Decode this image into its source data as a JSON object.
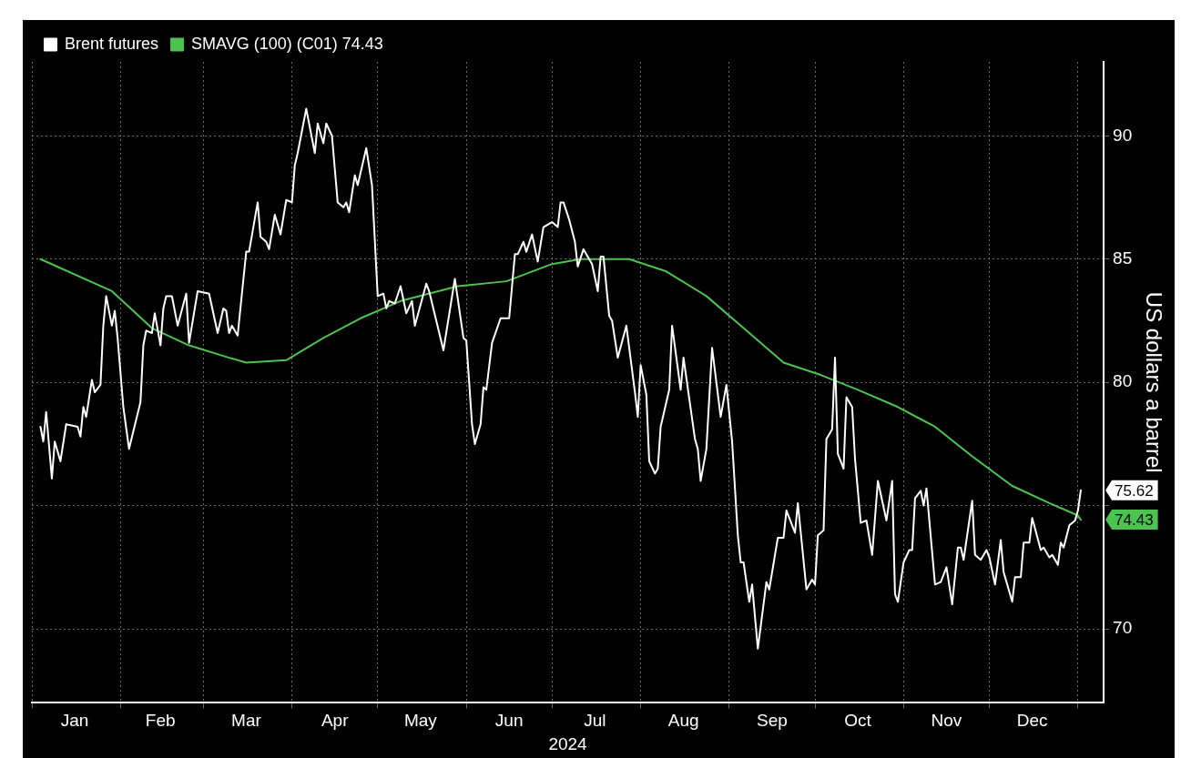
{
  "chart_data": {
    "type": "line",
    "xlabel": "2024",
    "ylabel": "US dollars a barrel",
    "xlim": [
      "2024-01-01",
      "2025-01-10"
    ],
    "xticks": [
      {
        "value": "2024-01-01",
        "label": null
      },
      {
        "value": "2024-01-16",
        "label": "Jan"
      },
      {
        "value": "2024-02-01",
        "label": null
      },
      {
        "value": "2024-02-15",
        "label": "Feb"
      },
      {
        "value": "2024-03-01",
        "label": null
      },
      {
        "value": "2024-03-16",
        "label": "Mar"
      },
      {
        "value": "2024-04-01",
        "label": null
      },
      {
        "value": "2024-04-16",
        "label": "Apr"
      },
      {
        "value": "2024-05-01",
        "label": null
      },
      {
        "value": "2024-05-16",
        "label": "May"
      },
      {
        "value": "2024-06-01",
        "label": null
      },
      {
        "value": "2024-06-16",
        "label": "Jun"
      },
      {
        "value": "2024-07-01",
        "label": null
      },
      {
        "value": "2024-07-16",
        "label": "Jul"
      },
      {
        "value": "2024-08-01",
        "label": null
      },
      {
        "value": "2024-08-16",
        "label": "Aug"
      },
      {
        "value": "2024-09-01",
        "label": null
      },
      {
        "value": "2024-09-16",
        "label": "Sep"
      },
      {
        "value": "2024-10-01",
        "label": null
      },
      {
        "value": "2024-10-16",
        "label": "Oct"
      },
      {
        "value": "2024-11-01",
        "label": null
      },
      {
        "value": "2024-11-16",
        "label": "Nov"
      },
      {
        "value": "2024-12-01",
        "label": null
      },
      {
        "value": "2024-12-16",
        "label": "Dec"
      },
      {
        "value": "2025-01-01",
        "label": null
      }
    ],
    "ylim": [
      67,
      93
    ],
    "yticks": [
      70,
      {
        "value": 75,
        "label": null
      },
      80,
      85,
      90
    ],
    "grid": true,
    "legend": "top left",
    "marker": "none",
    "line_style": "solid",
    "annotations": [
      {
        "text": "75.62",
        "x": "2025-01-02",
        "y": 75.62
      },
      {
        "text": "74.43",
        "x": "2025-01-02",
        "y": 74.43
      }
    ],
    "series": [
      {
        "name": "Brent futures",
        "color": "#ffffff",
        "x": [
          "2024-01-04",
          "2024-01-05",
          "2024-01-06",
          "2024-01-08",
          "2024-01-09",
          "2024-01-11",
          "2024-01-13",
          "2024-01-17",
          "2024-01-18",
          "2024-01-19",
          "2024-01-20",
          "2024-01-22",
          "2024-01-23",
          "2024-01-25",
          "2024-01-26",
          "2024-01-27",
          "2024-01-29",
          "2024-01-30",
          "2024-01-31",
          "2024-02-02",
          "2024-02-04",
          "2024-02-08",
          "2024-02-09",
          "2024-02-10",
          "2024-02-12",
          "2024-02-13",
          "2024-02-15",
          "2024-02-16",
          "2024-02-17",
          "2024-02-19",
          "2024-02-21",
          "2024-02-24",
          "2024-02-25",
          "2024-02-28",
          "2024-03-03",
          "2024-03-06",
          "2024-03-08",
          "2024-03-09",
          "2024-03-10",
          "2024-03-11",
          "2024-03-13",
          "2024-03-16",
          "2024-03-17",
          "2024-03-20",
          "2024-03-21",
          "2024-03-23",
          "2024-03-24",
          "2024-03-26",
          "2024-03-28",
          "2024-03-30",
          "2024-04-01",
          "2024-04-02",
          "2024-04-03",
          "2024-04-06",
          "2024-04-09",
          "2024-04-10",
          "2024-04-12",
          "2024-04-13",
          "2024-04-15",
          "2024-04-17",
          "2024-04-19",
          "2024-04-20",
          "2024-04-21",
          "2024-04-23",
          "2024-04-24",
          "2024-04-27",
          "2024-04-29",
          "2024-05-01",
          "2024-05-03",
          "2024-05-04",
          "2024-05-05",
          "2024-05-07",
          "2024-05-09",
          "2024-05-11",
          "2024-05-13",
          "2024-05-14",
          "2024-05-18",
          "2024-05-19",
          "2024-05-24",
          "2024-05-28",
          "2024-05-31",
          "2024-06-01",
          "2024-06-03",
          "2024-06-04",
          "2024-06-06",
          "2024-06-07",
          "2024-06-08",
          "2024-06-10",
          "2024-06-13",
          "2024-06-16",
          "2024-06-18",
          "2024-06-19",
          "2024-06-21",
          "2024-06-22",
          "2024-06-24",
          "2024-06-26",
          "2024-06-28",
          "2024-07-01",
          "2024-07-03",
          "2024-07-04",
          "2024-07-05",
          "2024-07-07",
          "2024-07-09",
          "2024-07-10",
          "2024-07-12",
          "2024-07-15",
          "2024-07-17",
          "2024-07-18",
          "2024-07-19",
          "2024-07-21",
          "2024-07-22",
          "2024-07-24",
          "2024-07-27",
          "2024-07-30",
          "2024-07-31",
          "2024-08-01",
          "2024-08-03",
          "2024-08-04",
          "2024-08-06",
          "2024-08-07",
          "2024-08-08",
          "2024-08-11",
          "2024-08-12",
          "2024-08-15",
          "2024-08-16",
          "2024-08-20",
          "2024-08-21",
          "2024-08-22",
          "2024-08-24",
          "2024-08-26",
          "2024-08-29",
          "2024-08-31",
          "2024-09-02",
          "2024-09-04",
          "2024-09-05",
          "2024-09-06",
          "2024-09-08",
          "2024-09-09",
          "2024-09-11",
          "2024-09-14",
          "2024-09-15",
          "2024-09-18",
          "2024-09-20",
          "2024-09-21",
          "2024-09-24",
          "2024-09-25",
          "2024-09-28",
          "2024-09-30",
          "2024-10-01",
          "2024-10-02",
          "2024-10-04",
          "2024-10-05",
          "2024-10-07",
          "2024-10-08",
          "2024-10-09",
          "2024-10-11",
          "2024-10-12",
          "2024-10-14",
          "2024-10-15",
          "2024-10-17",
          "2024-10-19",
          "2024-10-21",
          "2024-10-23",
          "2024-10-26",
          "2024-10-28",
          "2024-10-29",
          "2024-10-30",
          "2024-11-01",
          "2024-11-03",
          "2024-11-04",
          "2024-11-05",
          "2024-11-07",
          "2024-11-08",
          "2024-11-09",
          "2024-11-12",
          "2024-11-14",
          "2024-11-16",
          "2024-11-18",
          "2024-11-20",
          "2024-11-21",
          "2024-11-22",
          "2024-11-25",
          "2024-11-26",
          "2024-11-28",
          "2024-11-30",
          "2024-12-01",
          "2024-12-03",
          "2024-12-05",
          "2024-12-06",
          "2024-12-09",
          "2024-12-10",
          "2024-12-12",
          "2024-12-13",
          "2024-12-15",
          "2024-12-16",
          "2024-12-19",
          "2024-12-20",
          "2024-12-22",
          "2024-12-23",
          "2024-12-25",
          "2024-12-26",
          "2024-12-27",
          "2024-12-29",
          "2024-12-31",
          "2025-01-01",
          "2025-01-02"
        ],
        "values": [
          78.2,
          77.6,
          78.8,
          76.1,
          77.6,
          76.8,
          78.3,
          78.2,
          77.8,
          79.0,
          78.6,
          80.1,
          79.6,
          79.9,
          82.3,
          83.5,
          82.3,
          82.9,
          81.8,
          79.0,
          77.3,
          79.2,
          81.5,
          82.1,
          82.0,
          82.8,
          81.5,
          83.0,
          83.5,
          83.5,
          82.3,
          83.6,
          81.6,
          83.7,
          83.6,
          82.0,
          83.0,
          82.9,
          82.0,
          82.3,
          81.9,
          85.3,
          85.3,
          87.3,
          85.9,
          85.7,
          85.4,
          86.8,
          86.0,
          87.4,
          87.3,
          88.8,
          89.3,
          91.1,
          89.3,
          90.5,
          89.7,
          90.5,
          90.0,
          87.3,
          87.1,
          87.3,
          86.9,
          88.4,
          88.0,
          89.5,
          88.0,
          83.5,
          83.6,
          83.0,
          83.3,
          83.2,
          83.9,
          82.8,
          83.3,
          82.3,
          84.0,
          83.7,
          81.3,
          84.2,
          81.8,
          81.7,
          78.3,
          77.5,
          78.3,
          79.8,
          79.7,
          81.6,
          82.6,
          82.6,
          85.2,
          85.2,
          85.7,
          85.3,
          86.0,
          84.9,
          86.3,
          86.5,
          86.3,
          87.3,
          87.3,
          86.6,
          85.7,
          84.7,
          85.4,
          84.8,
          83.7,
          85.1,
          85.1,
          82.7,
          82.5,
          81.0,
          82.3,
          79.6,
          78.6,
          80.7,
          79.5,
          76.8,
          76.3,
          76.5,
          78.2,
          79.7,
          82.3,
          79.7,
          81.0,
          77.7,
          77.3,
          76.0,
          77.3,
          81.4,
          78.6,
          79.9,
          77.6,
          73.8,
          72.7,
          72.7,
          71.1,
          71.8,
          69.2,
          71.9,
          71.6,
          73.7,
          73.7,
          74.8,
          73.9,
          75.1,
          71.6,
          72.0,
          71.8,
          73.8,
          74.0,
          77.7,
          78.1,
          81.0,
          77.1,
          76.5,
          79.4,
          79.0,
          76.9,
          74.3,
          74.4,
          73.0,
          76.0,
          74.4,
          76.0,
          71.4,
          71.1,
          72.7,
          73.2,
          73.2,
          75.3,
          75.6,
          75.0,
          75.7,
          71.8,
          71.9,
          72.5,
          71.0,
          73.3,
          73.3,
          72.8,
          75.2,
          73.0,
          72.8,
          73.2,
          72.9,
          71.8,
          73.6,
          72.3,
          71.1,
          72.1,
          72.1,
          73.5,
          73.5,
          74.5,
          73.2,
          73.3,
          72.9,
          73.0,
          72.6,
          73.5,
          73.3,
          74.2,
          74.4,
          74.8,
          75.62
        ]
      },
      {
        "name": "SMAVG (100) (C01) 74.43",
        "color": "#4cc34f",
        "x": [
          "2024-01-04",
          "2024-01-29",
          "2024-02-12",
          "2024-02-25",
          "2024-03-10",
          "2024-03-16",
          "2024-03-30",
          "2024-04-12",
          "2024-04-25",
          "2024-05-09",
          "2024-05-29",
          "2024-06-15",
          "2024-07-01",
          "2024-07-11",
          "2024-07-28",
          "2024-08-10",
          "2024-08-24",
          "2024-09-06",
          "2024-09-20",
          "2024-10-03",
          "2024-10-16",
          "2024-10-30",
          "2024-11-12",
          "2024-11-25",
          "2024-12-09",
          "2024-12-22",
          "2025-01-01",
          "2025-01-02"
        ],
        "values": [
          85.0,
          83.7,
          82.2,
          81.5,
          81.0,
          80.8,
          80.9,
          81.8,
          82.6,
          83.3,
          83.9,
          84.1,
          84.8,
          85.0,
          85.0,
          84.5,
          83.5,
          82.2,
          80.8,
          80.3,
          79.7,
          79.0,
          78.2,
          77.0,
          75.8,
          75.1,
          74.6,
          74.43
        ]
      }
    ]
  }
}
